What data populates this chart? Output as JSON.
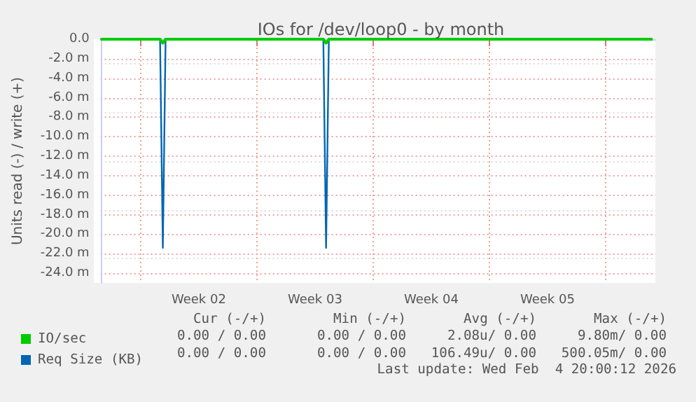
{
  "chart_data": {
    "type": "line",
    "title": "IOs for /dev/loop0 - by month",
    "ylabel": "Units read (-) / write (+)",
    "x": [
      "2026-01-02T14:00",
      "2026-01-06T04:00",
      "2026-01-06T08:00",
      "2026-01-06T12:00",
      "2026-01-16T00:00",
      "2026-01-16T04:00",
      "2026-01-16T08:00",
      "2026-02-04T20:00"
    ],
    "series": [
      {
        "name": "IO/sec",
        "color": "#00cc00",
        "values": [
          0,
          0,
          -0.4,
          0,
          0,
          -0.4,
          0,
          0
        ]
      },
      {
        "name": "Req Size (KB)",
        "color": "#0066b3",
        "values": [
          0,
          0,
          -21.4,
          0,
          0,
          -21.4,
          0,
          0
        ]
      }
    ],
    "xlim": [
      "2026-01-02T14:00",
      "2026-02-05T00:00"
    ],
    "xticks": [
      {
        "value": "2026-01-05",
        "label": null
      },
      {
        "value": "2026-01-08T12:00",
        "label": "Week 02"
      },
      {
        "value": "2026-01-12",
        "label": null
      },
      {
        "value": "2026-01-15T12:00",
        "label": "Week 03"
      },
      {
        "value": "2026-01-19",
        "label": null
      },
      {
        "value": "2026-01-22T12:00",
        "label": "Week 04"
      },
      {
        "value": "2026-01-26",
        "label": null
      },
      {
        "value": "2026-01-29T12:00",
        "label": "Week 05"
      },
      {
        "value": "2026-02-02",
        "label": null
      }
    ],
    "ylim": [
      -25,
      0
    ],
    "yticks": [
      {
        "value": 0,
        "label": "0.0"
      },
      {
        "value": -2,
        "label": "-2.0 m"
      },
      {
        "value": -4,
        "label": "-4.0 m"
      },
      {
        "value": -6,
        "label": "-6.0 m"
      },
      {
        "value": -8,
        "label": "-8.0 m"
      },
      {
        "value": -10,
        "label": "-10.0 m"
      },
      {
        "value": -12,
        "label": "-12.0 m"
      },
      {
        "value": -14,
        "label": "-14.0 m"
      },
      {
        "value": -16,
        "label": "-16.0 m"
      },
      {
        "value": -18,
        "label": "-18.0 m"
      },
      {
        "value": -20,
        "label": "-20.0 m"
      },
      {
        "value": -22,
        "label": "-22.0 m"
      },
      {
        "value": -24,
        "label": "-24.0 m"
      }
    ],
    "grid": true,
    "legend": "bottom left",
    "marker": "none",
    "line_style": "solid",
    "annotations": [
      "Cur (-/+)",
      "Min (-/+)",
      "Avg (-/+)",
      "Max (-/+)",
      "0.00 / 0.00",
      "0.00 / 0.00",
      "2.08u/ 0.00",
      "9.80m/ 0.00",
      "0.00 / 0.00",
      "0.00 / 0.00",
      "106.49u/ 0.00",
      "500.05m/ 0.00",
      "Last update: Wed Feb  4 20:00:12 2026"
    ]
  }
}
